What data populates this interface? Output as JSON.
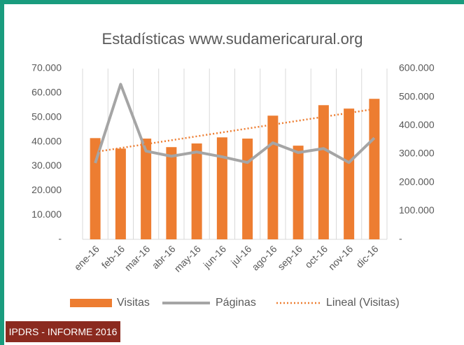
{
  "chart_data": {
    "type": "bar-line",
    "title": "Estadísticas www.sudamericarural.org",
    "categories": [
      "ene-16",
      "feb-16",
      "mar-16",
      "abr-16",
      "may-16",
      "jun-16",
      "jul-16",
      "ago-16",
      "sep-16",
      "oct-16",
      "nov-16",
      "dic-16"
    ],
    "series": [
      {
        "name": "Visitas",
        "color": "#ED7D31",
        "type": "bar",
        "values": [
          41500,
          37200,
          41300,
          37800,
          39300,
          41800,
          41300,
          50700,
          38400,
          55000,
          53600,
          57600
        ]
      },
      {
        "name": "Páginas",
        "color": "#A5A5A5",
        "type": "line",
        "axis": "y2",
        "values": [
          268000,
          545000,
          310000,
          292000,
          307000,
          290000,
          270000,
          339000,
          305000,
          319000,
          270000,
          356000
        ]
      }
    ],
    "trendline": {
      "name": "Lineal (Visitas)",
      "color": "#ED7D31",
      "style": "dotted"
    },
    "ylim": [
      0,
      70000
    ],
    "yticks": [
      {
        "value": 0,
        "label": "-"
      },
      {
        "value": 10000,
        "label": "10.000"
      },
      {
        "value": 20000,
        "label": "20.000"
      },
      {
        "value": 30000,
        "label": "30.000"
      },
      {
        "value": 40000,
        "label": "40.000"
      },
      {
        "value": 50000,
        "label": "50.000"
      },
      {
        "value": 60000,
        "label": "60.000"
      },
      {
        "value": 70000,
        "label": "70.000"
      }
    ],
    "y2lim": [
      0,
      600000
    ],
    "y2ticks": [
      {
        "value": 0,
        "label": "-"
      },
      {
        "value": 100000,
        "label": "100.000"
      },
      {
        "value": 200000,
        "label": "200.000"
      },
      {
        "value": 300000,
        "label": "300.000"
      },
      {
        "value": 400000,
        "label": "400.000"
      },
      {
        "value": 500000,
        "label": "500.000"
      },
      {
        "value": 600000,
        "label": "600.000"
      }
    ],
    "legend": "bottom"
  },
  "footer": {
    "label": "IPDRS - INFORME 2016"
  }
}
